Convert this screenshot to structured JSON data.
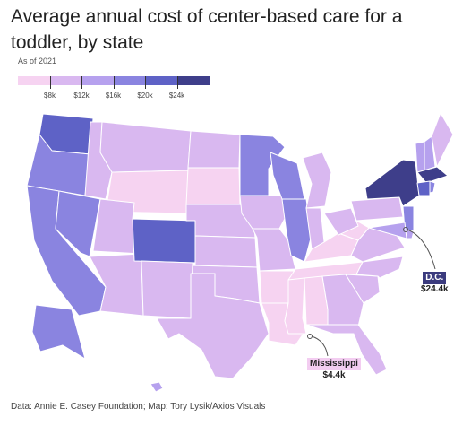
{
  "title": "Average annual cost of center-based care for a toddler, by state",
  "subtitle": "As of 2021",
  "legend": {
    "bins": [
      {
        "color": "#f6d3f1"
      },
      {
        "color": "#d9b8f0"
      },
      {
        "color": "#b6a1ee"
      },
      {
        "color": "#8a84e0"
      },
      {
        "color": "#5e62c6"
      },
      {
        "color": "#3e3e8a"
      }
    ],
    "ticks": [
      "$8k",
      "$12k",
      "$16k",
      "$20k",
      "$24k"
    ]
  },
  "callouts": {
    "dc": {
      "label": "D.C.",
      "value": "$24.4k"
    },
    "ms": {
      "label": "Mississippi",
      "value": "$4.4k"
    }
  },
  "source": "Data: Annie E. Casey Foundation; Map: Tory Lysik/Axios Visuals",
  "states": {
    "WA": 5,
    "OR": 4,
    "CA": 4,
    "NV": 4,
    "ID": 2,
    "MT": 2,
    "WY": 1,
    "UT": 2,
    "AZ": 2,
    "CO": 5,
    "NM": 2,
    "ND": 2,
    "SD": 1,
    "NE": 2,
    "KS": 2,
    "OK": 2,
    "TX": 2,
    "MN": 4,
    "IA": 2,
    "MO": 2,
    "AR": 1,
    "LA": 1,
    "WI": 4,
    "IL": 4,
    "MI": 2,
    "IN": 2,
    "KY": 1,
    "TN": 1,
    "MS": 1,
    "AL": 1,
    "GA": 2,
    "FL": 2,
    "SC": 2,
    "NC": 2,
    "VA": 2,
    "WV": 1,
    "OH": 2,
    "PA": 2,
    "NY": 6,
    "VT": 3,
    "NH": 3,
    "ME": 2,
    "MA": 6,
    "CT": 5,
    "RI": 4,
    "NJ": 4,
    "DE": 3,
    "MD": 3,
    "AK": 4,
    "HI": 3
  }
}
